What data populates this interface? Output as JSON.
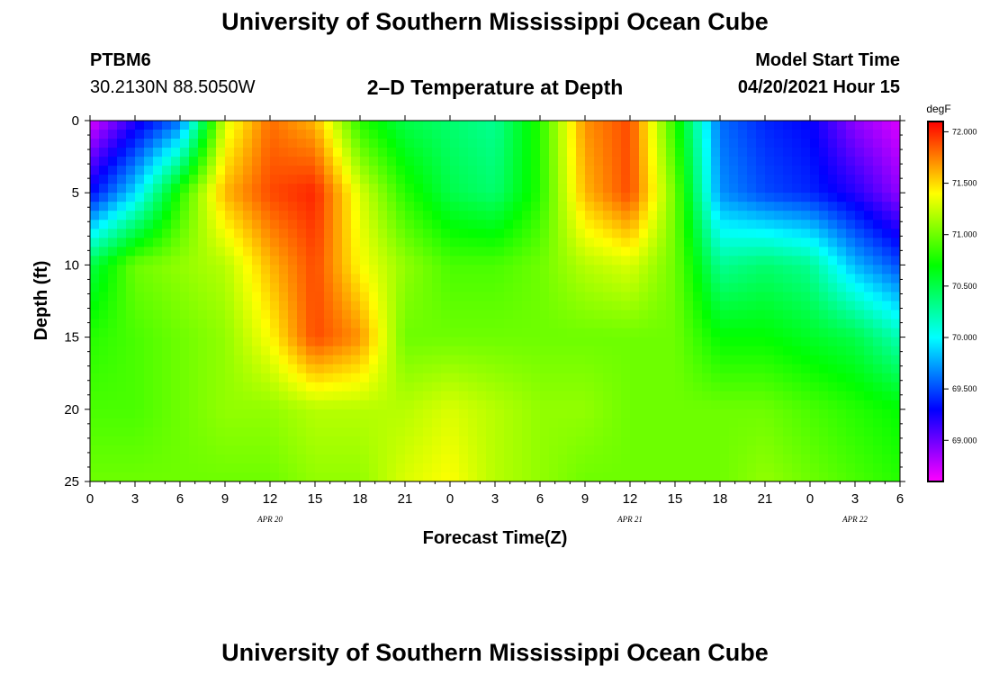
{
  "header": {
    "title_top": "University of Southern Mississippi Ocean Cube",
    "station_id": "PTBM6",
    "station_coords": "30.2130N  88.5050W",
    "plot_title": "2–D Temperature at Depth",
    "model_start_label": "Model Start Time",
    "model_start_value": "04/20/2021 Hour 15",
    "title_bottom": "University of Southern Mississippi Ocean Cube"
  },
  "chart_data": {
    "type": "heatmap",
    "title": "2–D Temperature at Depth",
    "xlabel": "Forecast Time(Z)",
    "ylabel": "Depth (ft)",
    "x_hours": [
      0,
      3,
      6,
      9,
      12,
      15,
      18,
      21,
      24,
      27,
      30,
      33,
      36,
      39,
      42,
      45,
      48,
      51,
      54
    ],
    "x_tick_labels": [
      "0",
      "3",
      "6",
      "9",
      "12",
      "15",
      "18",
      "21",
      "0",
      "3",
      "6",
      "9",
      "12",
      "15",
      "18",
      "21",
      "0",
      "3",
      "6"
    ],
    "date_labels": [
      "APR 20",
      "APR 21",
      "APR 22"
    ],
    "y_ticks": [
      0,
      5,
      10,
      15,
      20,
      25
    ],
    "y_tick_labels": [
      "0",
      "5",
      "10",
      "15",
      "20",
      "25"
    ],
    "ylim": [
      25,
      0
    ],
    "colorbar": {
      "unit": "degF",
      "range": [
        68.6,
        72.1
      ],
      "ticks": [
        "72.000",
        "71.500",
        "71.000",
        "70.500",
        "70.000",
        "69.500",
        "69.000"
      ],
      "tick_values": [
        72.0,
        71.5,
        71.0,
        70.5,
        70.0,
        69.5,
        69.0
      ]
    },
    "depths_ft": [
      0,
      5,
      10,
      15,
      20,
      25
    ],
    "temperature_degF": [
      [
        68.7,
        69.2,
        69.6,
        71.3,
        71.8,
        71.6,
        70.8,
        70.5,
        70.4,
        70.3,
        70.8,
        71.7,
        71.9,
        70.8,
        69.6,
        69.4,
        69.3,
        68.9,
        68.7
      ],
      [
        69.3,
        69.9,
        70.8,
        71.6,
        71.9,
        72.0,
        71.3,
        70.8,
        70.5,
        70.4,
        70.8,
        71.6,
        71.9,
        71.0,
        69.7,
        69.5,
        69.4,
        69.2,
        68.9
      ],
      [
        70.5,
        71.0,
        71.1,
        71.2,
        71.6,
        71.9,
        71.4,
        71.1,
        70.9,
        70.9,
        71.0,
        71.2,
        71.3,
        71.0,
        70.3,
        70.4,
        70.3,
        69.8,
        69.5
      ],
      [
        70.8,
        70.9,
        71.0,
        71.1,
        71.4,
        71.9,
        71.7,
        71.0,
        71.0,
        71.0,
        71.0,
        71.0,
        71.0,
        71.0,
        70.7,
        70.7,
        70.6,
        70.5,
        70.2
      ],
      [
        70.9,
        70.9,
        71.0,
        71.1,
        71.1,
        71.2,
        71.2,
        71.2,
        71.3,
        71.2,
        71.1,
        71.1,
        71.0,
        71.0,
        71.0,
        71.0,
        70.9,
        70.8,
        70.7
      ],
      [
        71.0,
        71.0,
        71.0,
        71.0,
        71.0,
        71.1,
        71.1,
        71.3,
        71.4,
        71.2,
        71.1,
        71.0,
        71.0,
        71.0,
        71.0,
        71.1,
        71.0,
        70.9,
        70.8
      ]
    ]
  }
}
